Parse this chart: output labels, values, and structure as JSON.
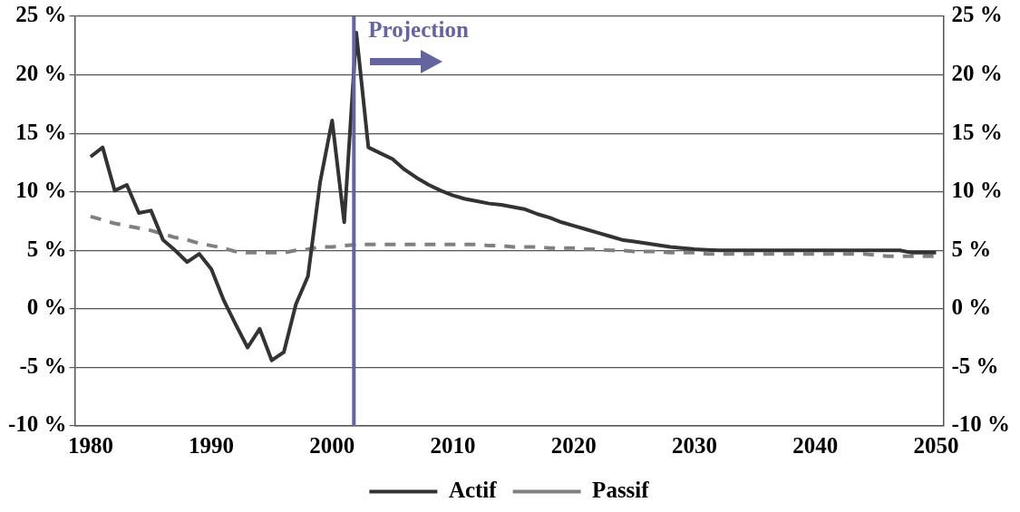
{
  "chart_data": {
    "type": "line",
    "x": [
      1980,
      1981,
      1982,
      1983,
      1984,
      1985,
      1986,
      1987,
      1988,
      1989,
      1990,
      1991,
      1992,
      1993,
      1994,
      1995,
      1996,
      1997,
      1998,
      1999,
      2000,
      2001,
      2002,
      2003,
      2004,
      2005,
      2006,
      2007,
      2008,
      2009,
      2010,
      2011,
      2012,
      2013,
      2014,
      2015,
      2016,
      2017,
      2018,
      2019,
      2020,
      2021,
      2022,
      2023,
      2024,
      2025,
      2026,
      2027,
      2028,
      2029,
      2030,
      2031,
      2032,
      2033,
      2034,
      2035,
      2036,
      2037,
      2038,
      2039,
      2040,
      2041,
      2042,
      2043,
      2044,
      2045,
      2046,
      2047,
      2048,
      2049,
      2050
    ],
    "series": [
      {
        "name": "Actif",
        "color": "#333333",
        "line_style": "solid",
        "values": [
          13.0,
          13.8,
          10.1,
          10.6,
          8.2,
          8.4,
          5.9,
          5.0,
          4.0,
          4.7,
          3.4,
          0.8,
          -1.3,
          -3.3,
          -1.7,
          -4.4,
          -3.7,
          0.4,
          2.8,
          10.8,
          16.1,
          7.4,
          23.6,
          13.8,
          13.3,
          12.8,
          11.9,
          11.2,
          10.6,
          10.1,
          9.7,
          9.4,
          9.2,
          9.0,
          8.9,
          8.7,
          8.5,
          8.1,
          7.8,
          7.4,
          7.1,
          6.8,
          6.5,
          6.2,
          5.9,
          5.75,
          5.6,
          5.45,
          5.3,
          5.2,
          5.1,
          5.05,
          5.0,
          5.0,
          5.0,
          5.0,
          5.0,
          5.0,
          5.0,
          5.0,
          5.0,
          5.0,
          5.0,
          5.0,
          5.0,
          5.0,
          5.0,
          5.0,
          4.8,
          4.8,
          4.8
        ]
      },
      {
        "name": "Passif",
        "color": "#808080",
        "line_style": "dashed",
        "values": [
          7.9,
          7.6,
          7.3,
          7.1,
          6.9,
          6.7,
          6.4,
          6.1,
          5.9,
          5.6,
          5.4,
          5.2,
          4.9,
          4.8,
          4.8,
          4.8,
          4.8,
          5.0,
          5.1,
          5.3,
          5.3,
          5.4,
          5.5,
          5.5,
          5.5,
          5.5,
          5.5,
          5.5,
          5.5,
          5.5,
          5.5,
          5.5,
          5.5,
          5.4,
          5.4,
          5.3,
          5.3,
          5.3,
          5.2,
          5.2,
          5.2,
          5.1,
          5.1,
          5.0,
          5.0,
          4.9,
          4.9,
          4.9,
          4.8,
          4.8,
          4.8,
          4.7,
          4.7,
          4.7,
          4.7,
          4.7,
          4.7,
          4.7,
          4.7,
          4.7,
          4.7,
          4.7,
          4.7,
          4.7,
          4.7,
          4.6,
          4.5,
          4.5,
          4.5,
          4.5,
          4.5
        ]
      }
    ],
    "xlim": [
      1978.7,
      2050.6
    ],
    "xticks": [
      1980,
      1990,
      2000,
      2010,
      2020,
      2030,
      2040,
      2050
    ],
    "ylim": [
      -10,
      25
    ],
    "yticks": [
      {
        "value": -10,
        "label": "-10 %"
      },
      {
        "value": -5,
        "label": "-5 %"
      },
      {
        "value": 0,
        "label": "0 %"
      },
      {
        "value": 5,
        "label": "5 %"
      },
      {
        "value": 10,
        "label": "10 %"
      },
      {
        "value": 15,
        "label": "15 %"
      },
      {
        "value": 20,
        "label": "20 %"
      },
      {
        "value": 25,
        "label": "25 %"
      }
    ],
    "y2lim": [
      -10,
      25
    ],
    "y2ticks": [
      {
        "value": -10,
        "label": "-10 %"
      },
      {
        "value": -5,
        "label": "-5 %"
      },
      {
        "value": 0,
        "label": "0 %"
      },
      {
        "value": 5,
        "label": "5 %"
      },
      {
        "value": 10,
        "label": "10 %"
      },
      {
        "value": 15,
        "label": "15 %"
      },
      {
        "value": 20,
        "label": "20 %"
      },
      {
        "value": 25,
        "label": "25 %"
      }
    ],
    "ref_lines": [
      {
        "axis": "x",
        "value": 2001.8,
        "label": "Projection",
        "color": "#6464a0"
      }
    ],
    "grid": "y",
    "legend": "bottom",
    "marker": "none"
  }
}
